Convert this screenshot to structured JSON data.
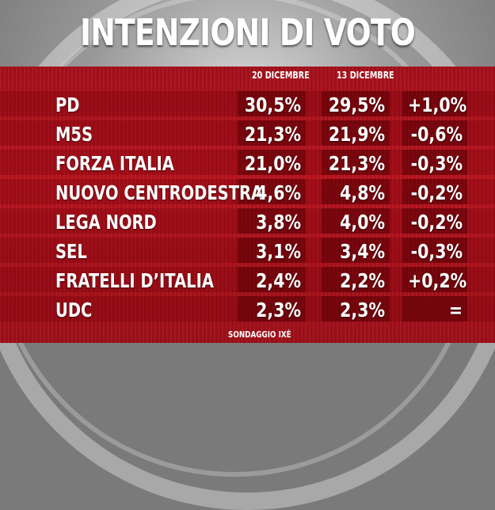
{
  "chart_data": {
    "type": "table",
    "title": "INTENZIONI DI VOTO",
    "columns": [
      "20 DICEMBRE",
      "13 DICEMBRE",
      ""
    ],
    "rows": [
      {
        "party": "PD",
        "dec20": "30,5%",
        "dec13": "29,5%",
        "change": "+1,0%"
      },
      {
        "party": "M5S",
        "dec20": "21,3%",
        "dec13": "21,9%",
        "change": "-0,6%"
      },
      {
        "party": "FORZA ITALIA",
        "dec20": "21,0%",
        "dec13": "21,3%",
        "change": "-0,3%"
      },
      {
        "party": "NUOVO CENTRODESTRA",
        "dec20": "4,6%",
        "dec13": "4,8%",
        "change": "-0,2%"
      },
      {
        "party": "LEGA NORD",
        "dec20": "3,8%",
        "dec13": "4,0%",
        "change": "-0,2%"
      },
      {
        "party": "SEL",
        "dec20": "3,1%",
        "dec13": "3,4%",
        "change": "-0,3%"
      },
      {
        "party": "FRATELLI D’ITALIA",
        "dec20": "2,4%",
        "dec13": "2,2%",
        "change": "+0,2%"
      },
      {
        "party": "UDC",
        "dec20": "2,3%",
        "dec13": "2,3%",
        "change": "="
      }
    ],
    "source": "SONDAGGIO IXÈ"
  },
  "colors": {
    "background": "#9a9a9a",
    "table_red": "#b8141e",
    "text": "#ffffff"
  }
}
